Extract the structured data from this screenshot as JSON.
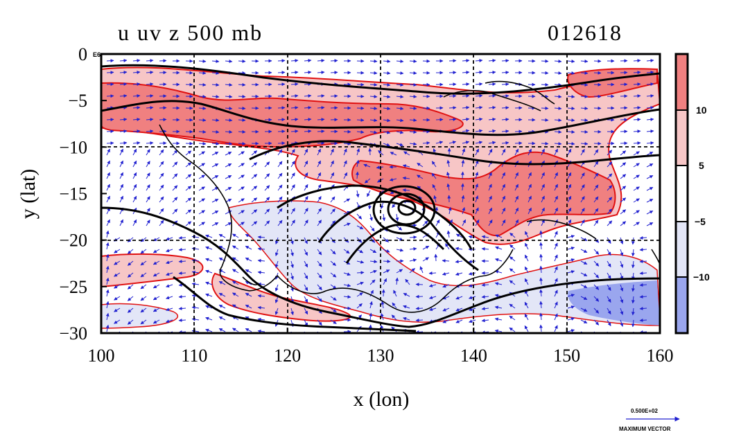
{
  "title_left": "u uv z 500 mb",
  "title_right": "012618",
  "corner_marker": "E6",
  "chart_data": {
    "type": "contour-vector-map",
    "title": "u uv z 500 mb",
    "xlabel": "x (lon)",
    "ylabel": "y (lat)",
    "xlim": [
      100,
      160
    ],
    "ylim": [
      -30,
      0
    ],
    "x_ticks": [
      100,
      110,
      120,
      130,
      140,
      150,
      160
    ],
    "y_ticks": [
      0,
      -5,
      -10,
      -15,
      -20,
      -25,
      -30
    ],
    "x_tick_labels": [
      "100",
      "110",
      "120",
      "130",
      "140",
      "150",
      "160"
    ],
    "y_tick_labels": [
      "0",
      "−5",
      "−10",
      "−15",
      "−20",
      "−25",
      "−30"
    ],
    "grid": true,
    "colorbar": {
      "placement": "right",
      "labels": [
        "10",
        "5",
        "−5",
        "−10"
      ],
      "bins": [
        {
          "range": "> 10",
          "color": "#f08080"
        },
        {
          "range": "5 to 10",
          "color": "#f7c6c6"
        },
        {
          "range": "-5 to 5",
          "color": "#ffffff"
        },
        {
          "range": "-10 to -5",
          "color": "#e3e6f7"
        },
        {
          "range": "< -10",
          "color": "#9aa6ee"
        }
      ]
    },
    "vector_reference": {
      "label": "0.500E+02",
      "caption": "MAXIMUM VECTOR"
    },
    "vortex_center": {
      "lon": 133,
      "lat": -17
    }
  }
}
